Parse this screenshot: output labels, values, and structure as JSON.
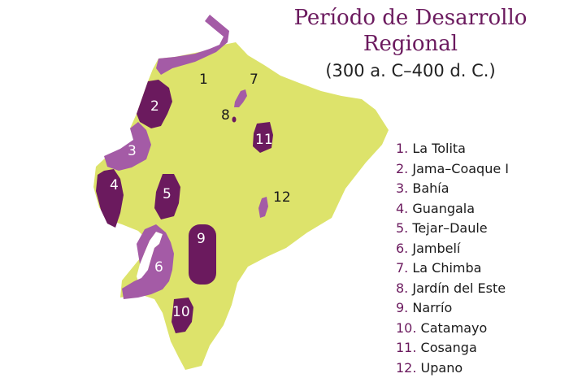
{
  "title": {
    "line1": "Período de Desarrollo",
    "line2": "Regional",
    "subtitle": "(300 a. C–400 d. C.)"
  },
  "colors": {
    "land": "#dde36b",
    "coastal_culture": "#a45ba6",
    "interior_culture": "#6b1a5e",
    "legend_number": "#6b1a5e",
    "title": "#6b1a5e",
    "text": "#1a1a1a"
  },
  "map_labels": {
    "l1": "1",
    "l2": "2",
    "l3": "3",
    "l4": "4",
    "l5": "5",
    "l6": "6",
    "l7": "7",
    "l8": "8",
    "l9": "9",
    "l10": "10",
    "l11": "11",
    "l12": "12"
  },
  "legend": [
    {
      "num": "1.",
      "name": "La Tolita"
    },
    {
      "num": "2.",
      "name": "Jama–Coaque I"
    },
    {
      "num": "3.",
      "name": "Bahía"
    },
    {
      "num": "4.",
      "name": "Guangala"
    },
    {
      "num": "5.",
      "name": "Tejar–Daule"
    },
    {
      "num": "6.",
      "name": "Jambelí"
    },
    {
      "num": "7.",
      "name": "La Chimba"
    },
    {
      "num": "8.",
      "name": "Jardín del Este"
    },
    {
      "num": "9.",
      "name": "Narrío"
    },
    {
      "num": "10.",
      "name": "Catamayo"
    },
    {
      "num": "11.",
      "name": "Cosanga"
    },
    {
      "num": "12.",
      "name": "Upano"
    }
  ]
}
